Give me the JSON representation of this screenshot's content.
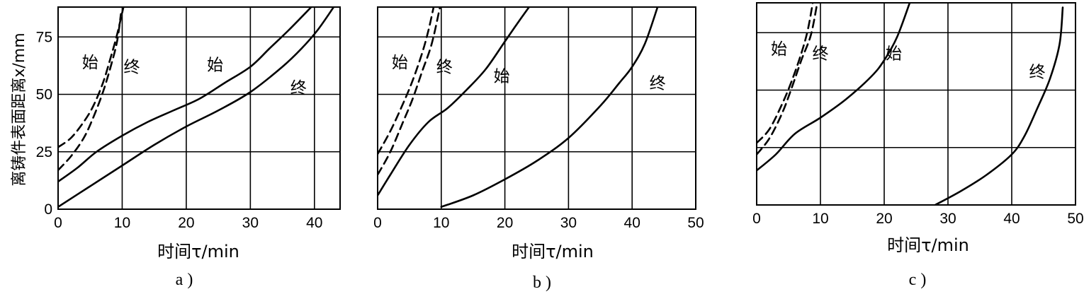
{
  "y_axis_label": "离铸件表面距离x/mm",
  "chart_data": [
    {
      "type": "line",
      "panel_label": "a )",
      "xlabel": "时间τ/min",
      "xlim": [
        0,
        44
      ],
      "ylim": [
        0,
        88
      ],
      "x_ticks": [
        0,
        10,
        20,
        30,
        40
      ],
      "y_ticks": [
        0,
        25,
        50,
        75
      ],
      "x_tick_labels": [
        "0",
        "10",
        "20",
        "30",
        "40"
      ],
      "y_tick_labels": [
        "0",
        "25",
        "50",
        "75"
      ],
      "grid": true,
      "series": [
        {
          "style": "dashed",
          "points": [
            [
              0,
              27
            ],
            [
              2,
              31
            ],
            [
              4,
              38
            ],
            [
              5.5,
              45
            ],
            [
              7,
              55
            ],
            [
              8.2,
              66
            ],
            [
              9.2,
              76
            ],
            [
              10.2,
              88
            ]
          ]
        },
        {
          "style": "dashed",
          "points": [
            [
              0,
              17
            ],
            [
              2,
              23
            ],
            [
              4,
              31
            ],
            [
              5.5,
              40
            ],
            [
              7,
              51
            ],
            [
              8.2,
              62
            ],
            [
              9.2,
              73
            ],
            [
              9.8,
              85
            ]
          ]
        },
        {
          "style": "solid",
          "points": [
            [
              0,
              12
            ],
            [
              3,
              18
            ],
            [
              6,
              25
            ],
            [
              10,
              32
            ],
            [
              14,
              38
            ],
            [
              18,
              43
            ],
            [
              22,
              48
            ],
            [
              26,
              55
            ],
            [
              30,
              62
            ],
            [
              33,
              70
            ],
            [
              36,
              78
            ],
            [
              39.5,
              88
            ]
          ]
        },
        {
          "style": "solid",
          "points": [
            [
              0,
              1
            ],
            [
              5,
              10
            ],
            [
              10,
              19
            ],
            [
              15,
              28
            ],
            [
              20,
              36
            ],
            [
              25,
              43
            ],
            [
              30,
              51
            ],
            [
              35,
              62
            ],
            [
              38,
              70
            ],
            [
              40.5,
              78
            ],
            [
              43,
              88
            ]
          ]
        }
      ],
      "annotations": [
        {
          "text": "始",
          "x": 5,
          "y": 64
        },
        {
          "text": "终",
          "x": 11.5,
          "y": 62
        },
        {
          "text": "始",
          "x": 24.5,
          "y": 63
        },
        {
          "text": "终",
          "x": 37.5,
          "y": 53
        }
      ]
    },
    {
      "type": "line",
      "panel_label": "b )",
      "xlabel": "时间τ/min",
      "xlim": [
        0,
        50
      ],
      "ylim": [
        0,
        88
      ],
      "x_ticks": [
        0,
        10,
        20,
        30,
        40,
        50
      ],
      "y_ticks": [
        0,
        25,
        50,
        75
      ],
      "x_tick_labels": [
        "0",
        "10",
        "20",
        "30",
        "40",
        "50"
      ],
      "y_tick_labels": [],
      "grid": true,
      "series": [
        {
          "style": "dashed",
          "points": [
            [
              0,
              24
            ],
            [
              2,
              34
            ],
            [
              4,
              46
            ],
            [
              5.5,
              56
            ],
            [
              7,
              68
            ],
            [
              8,
              78
            ],
            [
              8.8,
              88
            ]
          ]
        },
        {
          "style": "dashed",
          "points": [
            [
              0,
              15
            ],
            [
              2,
              25
            ],
            [
              4,
              38
            ],
            [
              5.5,
              48
            ],
            [
              7,
              60
            ],
            [
              8.5,
              72
            ],
            [
              9.8,
              88
            ]
          ]
        },
        {
          "style": "solid",
          "points": [
            [
              0,
              6
            ],
            [
              2,
              15
            ],
            [
              5,
              28
            ],
            [
              8,
              38
            ],
            [
              11,
              44
            ],
            [
              14,
              52
            ],
            [
              17,
              61
            ],
            [
              20,
              73
            ],
            [
              22,
              81
            ],
            [
              23.8,
              88
            ]
          ]
        },
        {
          "style": "solid",
          "points": [
            [
              10,
              1
            ],
            [
              15,
              6
            ],
            [
              20,
              13
            ],
            [
              25,
              21
            ],
            [
              30,
              31
            ],
            [
              35,
              45
            ],
            [
              38,
              55
            ],
            [
              40,
              62
            ],
            [
              42,
              72
            ],
            [
              44,
              88
            ]
          ]
        }
      ],
      "annotations": [
        {
          "text": "始",
          "x": 3.5,
          "y": 64
        },
        {
          "text": "终",
          "x": 10.5,
          "y": 62
        },
        {
          "text": "始",
          "x": 19.5,
          "y": 58
        },
        {
          "text": "终",
          "x": 44,
          "y": 55
        }
      ]
    },
    {
      "type": "line",
      "panel_label": "c )",
      "xlabel": "时间τ/min",
      "xlim": [
        0,
        50
      ],
      "ylim": [
        0,
        88
      ],
      "x_ticks": [
        0,
        10,
        20,
        30,
        40,
        50
      ],
      "y_ticks": [
        0,
        25,
        50,
        75
      ],
      "x_tick_labels": [
        "0",
        "10",
        "20",
        "30",
        "40",
        "50"
      ],
      "y_tick_labels": [],
      "grid": true,
      "series": [
        {
          "style": "dashed",
          "points": [
            [
              0,
              27
            ],
            [
              2,
              33
            ],
            [
              4,
              44
            ],
            [
              5.5,
              54
            ],
            [
              7,
              66
            ],
            [
              8,
              76
            ],
            [
              8.8,
              88
            ]
          ]
        },
        {
          "style": "dashed",
          "points": [
            [
              0,
              22
            ],
            [
              2,
              29
            ],
            [
              4,
              40
            ],
            [
              5.5,
              51
            ],
            [
              7,
              63
            ],
            [
              8.5,
              74
            ],
            [
              9.5,
              88
            ]
          ]
        },
        {
          "style": "solid",
          "points": [
            [
              0,
              15
            ],
            [
              3,
              22
            ],
            [
              6,
              31
            ],
            [
              10,
              38
            ],
            [
              14,
              46
            ],
            [
              18,
              56
            ],
            [
              20,
              63
            ],
            [
              22,
              73
            ],
            [
              24,
              88
            ]
          ]
        },
        {
          "style": "solid",
          "points": [
            [
              28,
              0
            ],
            [
              32,
              6
            ],
            [
              36,
              13
            ],
            [
              40,
              22
            ],
            [
              42,
              30
            ],
            [
              44,
              42
            ],
            [
              46,
              55
            ],
            [
              47.5,
              70
            ],
            [
              48,
              86
            ]
          ]
        }
      ],
      "annotations": [
        {
          "text": "始",
          "x": 3.5,
          "y": 68
        },
        {
          "text": "终",
          "x": 10,
          "y": 66
        },
        {
          "text": "始",
          "x": 21.5,
          "y": 66
        },
        {
          "text": "终",
          "x": 44,
          "y": 58
        }
      ]
    }
  ]
}
